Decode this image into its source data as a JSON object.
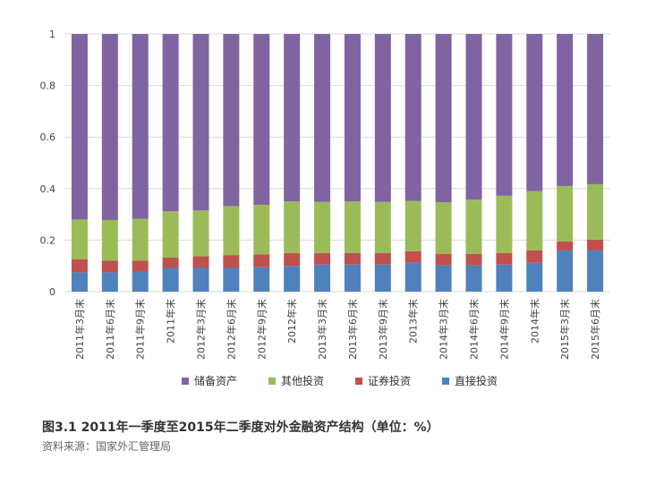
{
  "chart_data": {
    "type": "bar",
    "stacked": true,
    "categories": [
      "2011年3月末",
      "2011年6月末",
      "2011年9月末",
      "2011年末",
      "2012年3月末",
      "2012年6月末",
      "2012年9月末",
      "2012年末",
      "2013年3月末",
      "2013年6月末",
      "2013年9月末",
      "2013年末",
      "2014年3月末",
      "2014年6月末",
      "2014年9月末",
      "2014年末",
      "2015年3月末",
      "2015年6月末"
    ],
    "series": [
      {
        "name": "直接投资",
        "color": "#4f81bd",
        "values": [
          0.075,
          0.075,
          0.078,
          0.092,
          0.092,
          0.092,
          0.095,
          0.1,
          0.105,
          0.105,
          0.105,
          0.112,
          0.102,
          0.102,
          0.105,
          0.112,
          0.16,
          0.16
        ]
      },
      {
        "name": "证券投资",
        "color": "#c0504d",
        "values": [
          0.05,
          0.045,
          0.042,
          0.04,
          0.045,
          0.05,
          0.05,
          0.05,
          0.045,
          0.045,
          0.045,
          0.045,
          0.045,
          0.045,
          0.045,
          0.048,
          0.035,
          0.042
        ]
      },
      {
        "name": "其他投资",
        "color": "#9bbb59",
        "values": [
          0.155,
          0.158,
          0.163,
          0.18,
          0.178,
          0.19,
          0.192,
          0.2,
          0.198,
          0.2,
          0.198,
          0.195,
          0.2,
          0.21,
          0.222,
          0.23,
          0.215,
          0.215
        ]
      },
      {
        "name": "储备资产",
        "color": "#8064a2",
        "values": [
          0.72,
          0.722,
          0.717,
          0.688,
          0.685,
          0.668,
          0.663,
          0.65,
          0.652,
          0.65,
          0.652,
          0.648,
          0.653,
          0.643,
          0.628,
          0.61,
          0.59,
          0.583
        ]
      }
    ],
    "ylim": [
      0,
      1
    ],
    "yticks": [
      "0",
      "0.2",
      "0.4",
      "0.6",
      "0.8",
      "1"
    ],
    "grid": true,
    "legend_position": "bottom",
    "legend_order": [
      "储备资产",
      "其他投资",
      "证券投资",
      "直接投资"
    ]
  },
  "caption": {
    "title": "图3.1  2011年一季度至2015年二季度对外金融资产结构（单位：%）",
    "source": "资料来源：国家外汇管理局"
  }
}
